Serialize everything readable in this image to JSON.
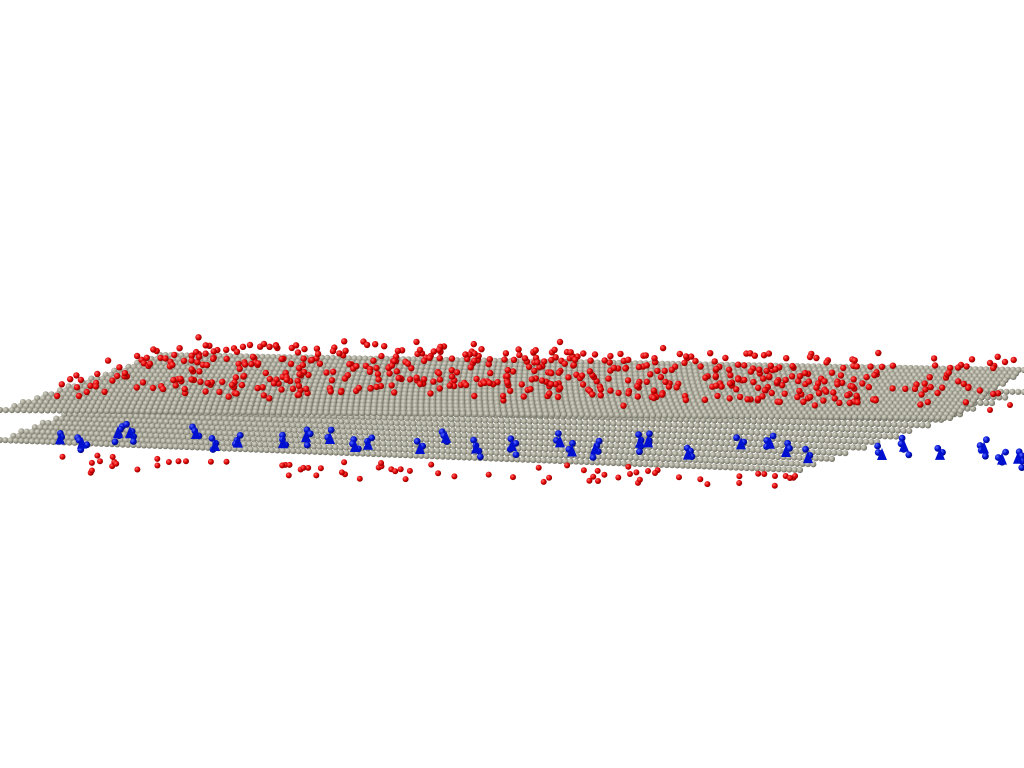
{
  "scene": {
    "background": "#ffffff",
    "atoms": [
      {
        "element": "carbon",
        "color": "#a3a293"
      },
      {
        "element": "oxygen",
        "color": "#e00000"
      },
      {
        "element": "nitrogen",
        "color": "#0010d0"
      }
    ],
    "sheets": [
      {
        "name": "upper-graphene-layer",
        "oxygen_on_top": true,
        "nitrogen_below": true
      },
      {
        "name": "lower-graphene-layer",
        "oxygen_below": true
      }
    ]
  }
}
